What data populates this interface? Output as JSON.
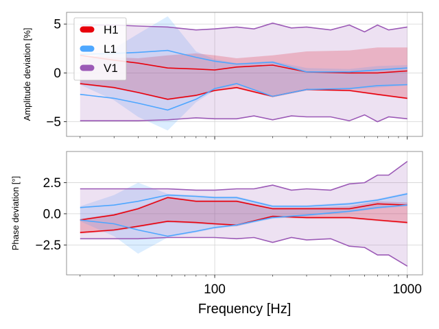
{
  "chart_data": [
    {
      "type": "line",
      "panel": "top",
      "ylabel": "Amplitude deviation [%]",
      "xlabel": "",
      "xscale": "log",
      "xlim": [
        17,
        1200
      ],
      "ylim": [
        -6.5,
        6.2
      ],
      "yticks": [
        -5,
        0,
        5
      ],
      "ytick_labels": [
        "−5",
        "0",
        "5"
      ],
      "xticks": [
        100,
        1000
      ],
      "xtick_labels": [
        "",
        ""
      ],
      "grid": true,
      "legend": {
        "position": "top-left",
        "entries": [
          "H1",
          "L1",
          "V1"
        ]
      },
      "series": [
        {
          "name": "H1",
          "color": "#e8000b",
          "x": [
            20,
            30,
            40,
            57,
            80,
            100,
            130,
            200,
            300,
            500,
            700,
            1000
          ],
          "upper": [
            1.8,
            1.3,
            1.0,
            0.5,
            0.4,
            0.3,
            0.6,
            0.8,
            0.1,
            0.0,
            0.0,
            0.2
          ],
          "lower": [
            -1.1,
            -1.5,
            -2.0,
            -2.7,
            -2.3,
            -1.8,
            -1.5,
            -2.4,
            -1.7,
            -1.8,
            -2.2,
            -2.6
          ],
          "band_upper": [
            1.8,
            1.6,
            1.5,
            1.8,
            2.0,
            1.8,
            1.5,
            1.8,
            2.2,
            2.3,
            2.6,
            2.6
          ],
          "band_lower": [
            -1.2,
            -1.6,
            -2.1,
            -2.8,
            -2.4,
            -1.9,
            -1.6,
            -2.5,
            -1.8,
            -1.9,
            -2.3,
            -2.7
          ]
        },
        {
          "name": "L1",
          "color": "#4da6ff",
          "x": [
            20,
            30,
            40,
            57,
            80,
            100,
            130,
            200,
            300,
            500,
            700,
            1000
          ],
          "upper": [
            1.9,
            2.0,
            2.1,
            2.3,
            1.6,
            1.2,
            0.9,
            1.1,
            0.1,
            0.1,
            0.3,
            0.5
          ],
          "lower": [
            -2.2,
            -2.6,
            -3.1,
            -3.8,
            -2.7,
            -1.6,
            -1.1,
            -2.4,
            -1.7,
            -1.6,
            -1.3,
            -1.2
          ],
          "band_upper": [
            1.0,
            2.5,
            4.0,
            5.8,
            2.2,
            1.4,
            1.0,
            1.2,
            0.5,
            0.4,
            0.7,
            0.8
          ],
          "band_lower": [
            -1.2,
            -2.8,
            -4.5,
            -5.9,
            -3.0,
            -1.8,
            -1.2,
            -2.4,
            -1.8,
            -1.7,
            -1.5,
            -1.3
          ]
        },
        {
          "name": "V1",
          "color": "#9b59b6",
          "x": [
            20,
            30,
            40,
            57,
            80,
            100,
            130,
            160,
            200,
            250,
            300,
            400,
            500,
            600,
            700,
            800,
            1000
          ],
          "upper": [
            4.9,
            4.9,
            4.8,
            4.7,
            4.4,
            4.5,
            4.7,
            4.5,
            5.1,
            4.6,
            4.7,
            4.4,
            4.9,
            4.2,
            4.9,
            4.4,
            4.7
          ],
          "lower": [
            -4.9,
            -4.9,
            -4.9,
            -4.8,
            -4.6,
            -4.7,
            -4.7,
            -4.4,
            -4.8,
            -4.4,
            -4.5,
            -4.5,
            -4.9,
            -4.3,
            -5.0,
            -4.5,
            -4.7
          ]
        }
      ]
    },
    {
      "type": "line",
      "panel": "bottom",
      "ylabel": "Phase deviation [°]",
      "xlabel": "Frequency [Hz]",
      "xscale": "log",
      "xlim": [
        17,
        1200
      ],
      "ylim": [
        -4.9,
        5.0
      ],
      "yticks": [
        -2.5,
        0.0,
        2.5
      ],
      "ytick_labels": [
        "−2.5",
        "0.0",
        "2.5"
      ],
      "xticks": [
        100,
        1000
      ],
      "xtick_labels": [
        "100",
        "1000"
      ],
      "grid": true,
      "series": [
        {
          "name": "H1",
          "color": "#e8000b",
          "x": [
            20,
            30,
            40,
            57,
            80,
            100,
            130,
            200,
            300,
            500,
            700,
            1000
          ],
          "upper": [
            -0.5,
            -0.1,
            0.4,
            1.3,
            1.0,
            1.0,
            1.0,
            0.4,
            0.4,
            0.4,
            0.8,
            0.7
          ],
          "lower": [
            -1.5,
            -1.3,
            -1.0,
            -0.6,
            -0.7,
            -0.8,
            -0.9,
            -0.2,
            -0.3,
            -0.3,
            -0.5,
            -0.7
          ],
          "band_upper": [
            -0.4,
            0.0,
            0.5,
            1.4,
            1.1,
            1.1,
            1.1,
            0.5,
            0.5,
            0.6,
            1.0,
            0.9
          ],
          "band_lower": [
            -1.6,
            -1.4,
            -1.1,
            -0.7,
            -0.8,
            -0.9,
            -1.0,
            -0.3,
            -0.4,
            -0.4,
            -0.6,
            -0.8
          ]
        },
        {
          "name": "L1",
          "color": "#4da6ff",
          "x": [
            20,
            30,
            40,
            57,
            80,
            100,
            130,
            200,
            300,
            500,
            700,
            1000
          ],
          "upper": [
            0.5,
            0.7,
            1.0,
            1.5,
            1.4,
            1.3,
            1.3,
            0.6,
            0.6,
            0.8,
            1.1,
            1.6
          ],
          "lower": [
            -0.5,
            -0.8,
            -1.3,
            -1.8,
            -1.4,
            -1.1,
            -0.9,
            -0.3,
            -0.1,
            0.2,
            0.5,
            0.7
          ],
          "band_upper": [
            0.6,
            1.5,
            2.5,
            1.6,
            1.5,
            1.4,
            1.4,
            0.7,
            0.7,
            0.9,
            1.2,
            1.7
          ],
          "band_lower": [
            -0.6,
            -1.8,
            -3.2,
            -1.9,
            -1.5,
            -1.2,
            -1.0,
            -0.4,
            -0.2,
            0.1,
            0.4,
            0.6
          ]
        },
        {
          "name": "V1",
          "color": "#9b59b6",
          "x": [
            20,
            30,
            40,
            57,
            80,
            100,
            130,
            160,
            200,
            250,
            300,
            400,
            500,
            600,
            700,
            800,
            1000
          ],
          "upper": [
            2.0,
            2.0,
            2.0,
            2.0,
            1.9,
            1.9,
            2.0,
            2.0,
            2.3,
            1.9,
            2.0,
            1.9,
            2.4,
            2.5,
            3.1,
            3.1,
            4.2
          ],
          "lower": [
            -2.0,
            -2.0,
            -2.0,
            -1.9,
            -1.9,
            -1.9,
            -2.0,
            -1.9,
            -2.3,
            -1.9,
            -2.1,
            -2.0,
            -2.6,
            -2.7,
            -3.3,
            -3.3,
            -4.2
          ]
        }
      ]
    }
  ]
}
